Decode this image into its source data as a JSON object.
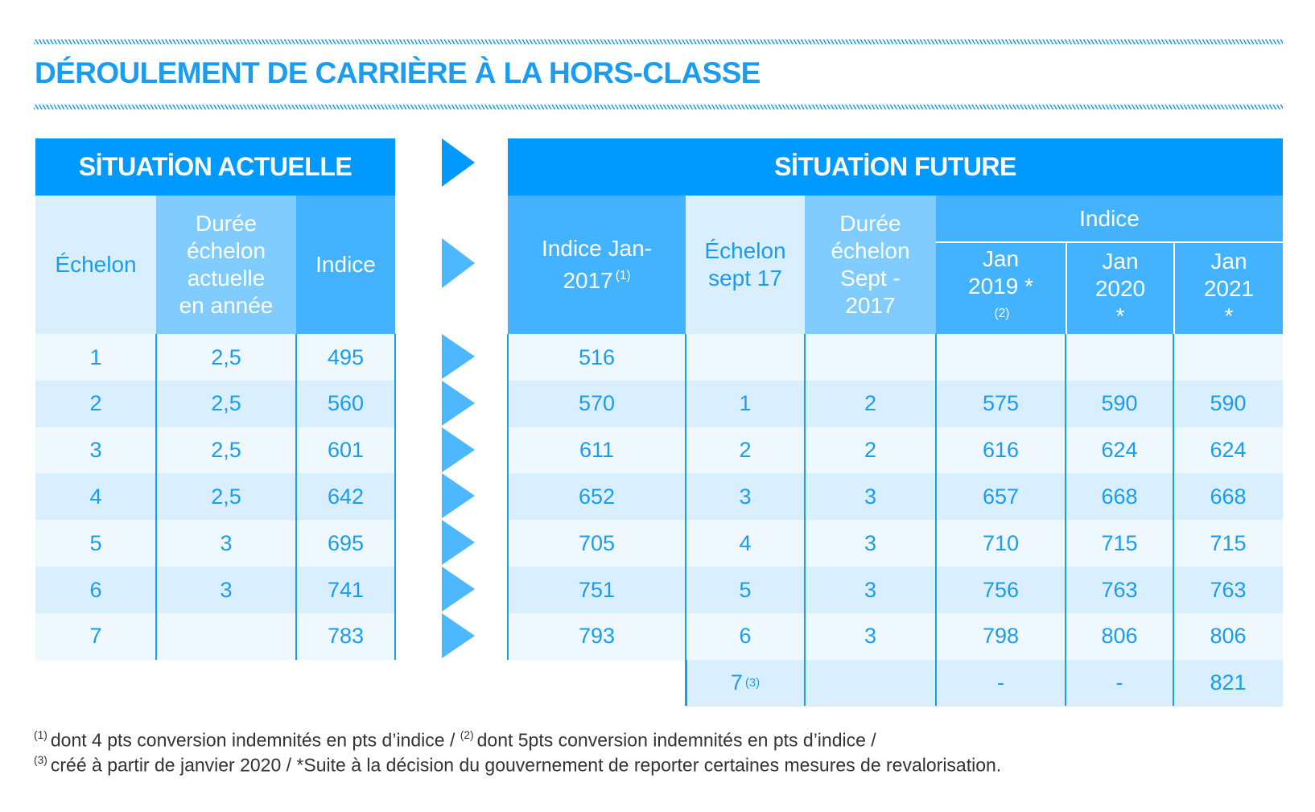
{
  "title": "DÉROULEMENT DE CARRIÈRE À LA HORS-CLASSE",
  "colors": {
    "primary": "#0099ff",
    "header_mid": "#44b3ff",
    "header_pale": "#80ccff",
    "row_light": "#eff8ff",
    "row_dark": "#d9effd",
    "text": "#1a9cf0"
  },
  "current": {
    "title": "SİTUATİON ACTUELLE",
    "columns": [
      "Échelon",
      "Durée échelon actuelle en année",
      "Indice"
    ],
    "rows": [
      [
        "1",
        "2,5",
        "495"
      ],
      [
        "2",
        "2,5",
        "560"
      ],
      [
        "3",
        "2,5",
        "601"
      ],
      [
        "4",
        "2,5",
        "642"
      ],
      [
        "5",
        "3",
        "695"
      ],
      [
        "6",
        "3",
        "741"
      ],
      [
        "7",
        "",
        "783"
      ]
    ]
  },
  "future": {
    "title": "SİTUATİON FUTURE",
    "columns": {
      "indice_2017": "Indice Jan-2017",
      "indice_2017_note": "(1)",
      "echelon": "Échelon sept 17",
      "duree": "Durée échelon Sept - 2017",
      "indice_group": "Indice",
      "jan2019": "Jan 2019 *",
      "jan2019_note": "(2)",
      "jan2020": "Jan 2020 *",
      "jan2021": "Jan 2021 *"
    },
    "rows": [
      [
        "516",
        "",
        "",
        "",
        "",
        ""
      ],
      [
        "570",
        "1",
        "2",
        "575",
        "590",
        "590"
      ],
      [
        "611",
        "2",
        "2",
        "616",
        "624",
        "624"
      ],
      [
        "652",
        "3",
        "3",
        "657",
        "668",
        "668"
      ],
      [
        "705",
        "4",
        "3",
        "710",
        "715",
        "715"
      ],
      [
        "751",
        "5",
        "3",
        "756",
        "763",
        "763"
      ],
      [
        "793",
        "6",
        "3",
        "798",
        "806",
        "806"
      ],
      [
        "",
        "7",
        "",
        "-",
        "-",
        "821"
      ]
    ],
    "last_row_echelon_note": "(3)"
  },
  "footnotes": {
    "n1_mark": "(1)",
    "n1": "dont 4 pts conversion indemnités en pts d’indice / ",
    "n2_mark": "(2)",
    "n2": "dont 5pts conversion indemnités en pts d’indice /",
    "n3_mark": "(3)",
    "n3": "créé à partir de janvier 2020 / *Suite à la décision du gouvernement de reporter certaines mesures de revalorisation."
  }
}
